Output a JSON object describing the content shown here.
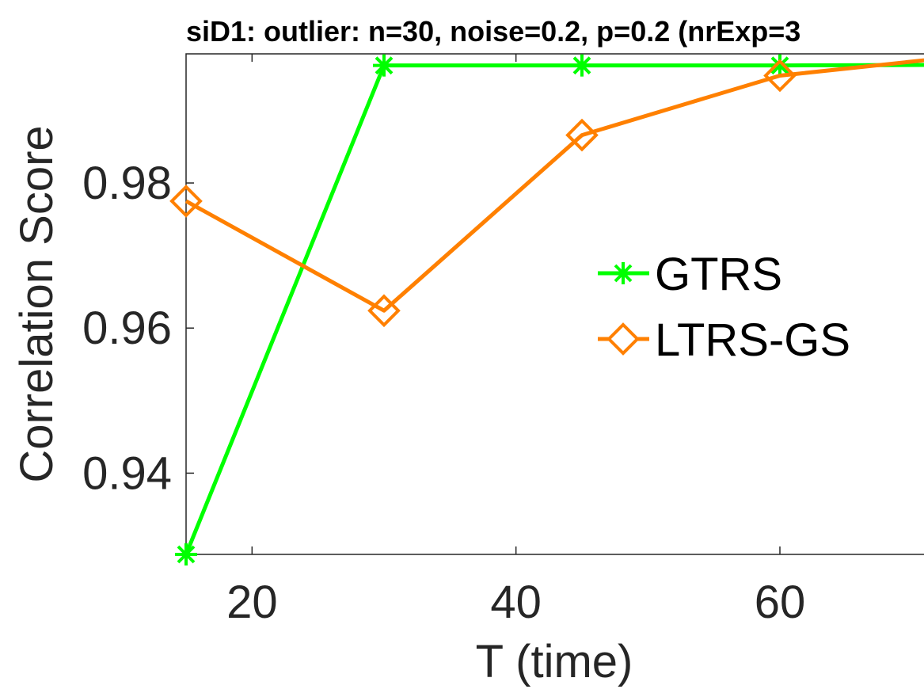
{
  "chart_data": {
    "type": "line",
    "title": "siD1: outlier: n=30, noise=0.2, p=0.2 (nrExp=3",
    "xlabel": "T (time)",
    "ylabel": "Correlation Score",
    "x": [
      15,
      30,
      45,
      60,
      75
    ],
    "xlim": [
      15,
      75
    ],
    "ylim": [
      0.9288,
      0.9978
    ],
    "xticks": [
      20,
      40,
      60
    ],
    "yticks": [
      0.94,
      0.96,
      0.98
    ],
    "xtick_labels": [
      "20",
      "40",
      "60"
    ],
    "ytick_labels": [
      "0.94",
      "0.96",
      "0.98"
    ],
    "grid": false,
    "legend_position": "right",
    "series": [
      {
        "name": "GTRS",
        "color": "#00ff00",
        "marker": "asterisk",
        "values": [
          0.9288,
          0.9962,
          0.9962,
          0.9962,
          0.9963
        ]
      },
      {
        "name": "LTRS-GS",
        "color": "#ff8000",
        "marker": "diamond",
        "values": [
          0.9775,
          0.9624,
          0.9866,
          0.9948,
          0.9977
        ]
      }
    ]
  }
}
